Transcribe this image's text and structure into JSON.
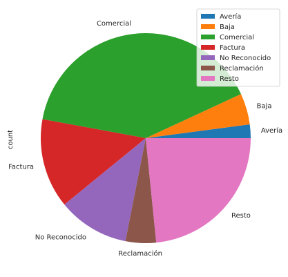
{
  "chart_data": {
    "type": "pie",
    "ylabel": "count",
    "slices": [
      {
        "label": "Avería",
        "value": 2.1,
        "color": "#1f77b4"
      },
      {
        "label": "Baja",
        "value": 4.8,
        "color": "#ff7f0e"
      },
      {
        "label": "Comercial",
        "value": 40.2,
        "color": "#2ca02c"
      },
      {
        "label": "Factura",
        "value": 13.8,
        "color": "#d62728"
      },
      {
        "label": "No Reconocido",
        "value": 11.0,
        "color": "#9467bd"
      },
      {
        "label": "Reclamación",
        "value": 4.7,
        "color": "#8c564b"
      },
      {
        "label": "Resto",
        "value": 23.4,
        "color": "#e377c2"
      }
    ],
    "legend": {
      "placement": "top-right",
      "entries": [
        "Avería",
        "Baja",
        "Comercial",
        "Factura",
        "No Reconocido",
        "Reclamación",
        "Resto"
      ]
    },
    "start_angle_deg": 0,
    "direction": "counterclockwise"
  }
}
